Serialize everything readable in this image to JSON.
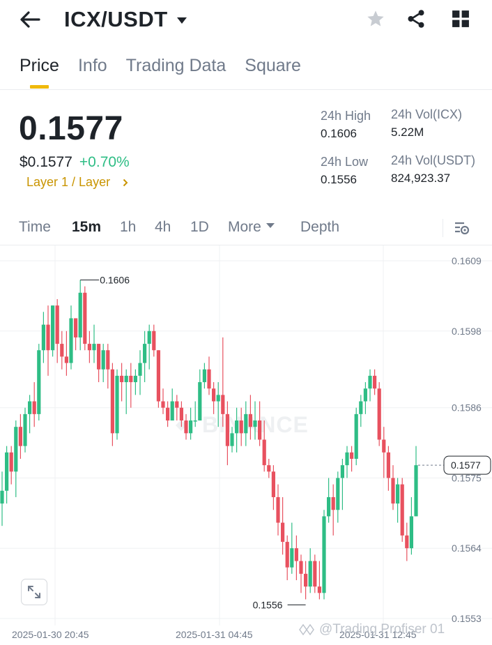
{
  "header": {
    "pair": "ICX/USDT",
    "back_icon": "arrow-left-icon",
    "star_icon": "star-icon",
    "share_icon": "share-icon",
    "grid_icon": "grid-icon"
  },
  "tabs": [
    {
      "label": "Price",
      "active": true
    },
    {
      "label": "Info",
      "active": false
    },
    {
      "label": "Trading Data",
      "active": false
    },
    {
      "label": "Square",
      "active": false
    }
  ],
  "price": {
    "last": "0.1577",
    "usd": "$0.1577",
    "change": "+0.70%",
    "tag": "Layer 1 / Layer"
  },
  "stats": {
    "high_label": "24h High",
    "high_value": "0.1606",
    "low_label": "24h Low",
    "low_value": "0.1556",
    "vol_base_label": "24h Vol(ICX)",
    "vol_base_value": "5.22M",
    "vol_quote_label": "24h Vol(USDT)",
    "vol_quote_value": "824,923.37"
  },
  "intervals": [
    {
      "label": "Time",
      "active": false
    },
    {
      "label": "15m",
      "active": true
    },
    {
      "label": "1h",
      "active": false
    },
    {
      "label": "4h",
      "active": false
    },
    {
      "label": "1D",
      "active": false
    },
    {
      "label": "More",
      "active": false
    },
    {
      "label": "Depth",
      "active": false
    }
  ],
  "colors": {
    "up": "#2ebd85",
    "down": "#e8515f",
    "accent": "#f0b90b",
    "tag": "#c99400",
    "text": "#1e2329",
    "muted": "#707a8a"
  },
  "chart_data": {
    "type": "candlestick",
    "interval": "15m",
    "y_ticks": [
      "0.1609",
      "0.1598",
      "0.1586",
      "0.1575",
      "0.1564",
      "0.1553"
    ],
    "x_labels": [
      "2025-01-30 20:45",
      "2025-01-31 04:45",
      "2025-01-31 12:45"
    ],
    "last_price_label": "0.1577",
    "high_marker": "0.1606",
    "low_marker": "0.1556",
    "watermark": "BINANCE",
    "footer_watermark": "@Trading Profiser 01",
    "candles": [
      [
        0.1571,
        0.1576,
        0.15675,
        0.1573
      ],
      [
        0.1573,
        0.158,
        0.1571,
        0.1579
      ],
      [
        0.1579,
        0.158,
        0.1574,
        0.1576
      ],
      [
        0.1576,
        0.1584,
        0.1572,
        0.1583
      ],
      [
        0.1583,
        0.1585,
        0.1578,
        0.158
      ],
      [
        0.158,
        0.1586,
        0.1579,
        0.1585
      ],
      [
        0.1585,
        0.1588,
        0.1582,
        0.1587
      ],
      [
        0.1587,
        0.159,
        0.1583,
        0.1585
      ],
      [
        0.1585,
        0.1596,
        0.1584,
        0.1595
      ],
      [
        0.1595,
        0.1601,
        0.1593,
        0.1599
      ],
      [
        0.1599,
        0.1602,
        0.1591,
        0.1595
      ],
      [
        0.1595,
        0.1602,
        0.1594,
        0.1602
      ],
      [
        0.1602,
        0.1603,
        0.1593,
        0.1596
      ],
      [
        0.1596,
        0.1598,
        0.1592,
        0.1594
      ],
      [
        0.1594,
        0.1598,
        0.1591,
        0.1593
      ],
      [
        0.1593,
        0.1602,
        0.1592,
        0.16
      ],
      [
        0.16,
        0.16,
        0.1595,
        0.1597
      ],
      [
        0.1597,
        0.1606,
        0.1595,
        0.1604
      ],
      [
        0.1604,
        0.1605,
        0.1595,
        0.1596
      ],
      [
        0.1596,
        0.1598,
        0.1593,
        0.1595
      ],
      [
        0.1595,
        0.1599,
        0.1593,
        0.1596
      ],
      [
        0.1596,
        0.1596,
        0.159,
        0.1592
      ],
      [
        0.1592,
        0.1596,
        0.159,
        0.1595
      ],
      [
        0.1595,
        0.1596,
        0.1589,
        0.1592
      ],
      [
        0.1592,
        0.1593,
        0.158,
        0.1582
      ],
      [
        0.1582,
        0.1592,
        0.1581,
        0.1591
      ],
      [
        0.1591,
        0.1593,
        0.1587,
        0.159
      ],
      [
        0.159,
        0.1592,
        0.1585,
        0.1591
      ],
      [
        0.1591,
        0.1593,
        0.1586,
        0.159
      ],
      [
        0.159,
        0.1592,
        0.1588,
        0.1591
      ],
      [
        0.1591,
        0.1595,
        0.1588,
        0.1593
      ],
      [
        0.1593,
        0.1598,
        0.159,
        0.1596
      ],
      [
        0.1596,
        0.1599,
        0.1592,
        0.1598
      ],
      [
        0.1598,
        0.1599,
        0.1594,
        0.1595
      ],
      [
        0.1595,
        0.1595,
        0.1586,
        0.1587
      ],
      [
        0.1587,
        0.1589,
        0.1585,
        0.1586
      ],
      [
        0.1586,
        0.1587,
        0.1583,
        0.1584
      ],
      [
        0.1584,
        0.1589,
        0.1584,
        0.1587
      ],
      [
        0.1587,
        0.1588,
        0.1584,
        0.1586
      ],
      [
        0.1586,
        0.1587,
        0.1583,
        0.1584
      ],
      [
        0.1584,
        0.1585,
        0.1581,
        0.1582
      ],
      [
        0.1582,
        0.1586,
        0.1581,
        0.1584
      ],
      [
        0.1584,
        0.1587,
        0.1583,
        0.1584
      ],
      [
        0.1584,
        0.1592,
        0.1584,
        0.159
      ],
      [
        0.159,
        0.1593,
        0.1589,
        0.1592
      ],
      [
        0.1592,
        0.1594,
        0.1588,
        0.1589
      ],
      [
        0.1589,
        0.159,
        0.1585,
        0.1587
      ],
      [
        0.1587,
        0.159,
        0.1583,
        0.1588
      ],
      [
        0.1588,
        0.1597,
        0.1583,
        0.1585
      ],
      [
        0.1585,
        0.1587,
        0.1577,
        0.158
      ],
      [
        0.158,
        0.1583,
        0.1579,
        0.1582
      ],
      [
        0.1582,
        0.1586,
        0.1579,
        0.1584
      ],
      [
        0.1584,
        0.1586,
        0.158,
        0.1582
      ],
      [
        0.1582,
        0.1587,
        0.158,
        0.1585
      ],
      [
        0.1585,
        0.1588,
        0.1581,
        0.1583
      ],
      [
        0.1583,
        0.1587,
        0.1581,
        0.1584
      ],
      [
        0.1584,
        0.1587,
        0.158,
        0.1581
      ],
      [
        0.1581,
        0.1584,
        0.1576,
        0.1577
      ],
      [
        0.1577,
        0.1578,
        0.1575,
        0.1576
      ],
      [
        0.1576,
        0.1577,
        0.157,
        0.1572
      ],
      [
        0.1572,
        0.1574,
        0.1566,
        0.1568
      ],
      [
        0.1568,
        0.1572,
        0.1563,
        0.1565
      ],
      [
        0.1565,
        0.1566,
        0.1559,
        0.1561
      ],
      [
        0.1561,
        0.1568,
        0.156,
        0.1564
      ],
      [
        0.1564,
        0.1566,
        0.1559,
        0.1562
      ],
      [
        0.1562,
        0.1563,
        0.1557,
        0.156
      ],
      [
        0.156,
        0.1562,
        0.1556,
        0.1558
      ],
      [
        0.1558,
        0.1564,
        0.1557,
        0.1562
      ],
      [
        0.1562,
        0.1563,
        0.1557,
        0.1558
      ],
      [
        0.1558,
        0.1562,
        0.1556,
        0.1557
      ],
      [
        0.1557,
        0.157,
        0.1556,
        0.1569
      ],
      [
        0.1569,
        0.1575,
        0.1568,
        0.1572
      ],
      [
        0.1572,
        0.1574,
        0.1566,
        0.157
      ],
      [
        0.157,
        0.1576,
        0.1568,
        0.1575
      ],
      [
        0.1575,
        0.1578,
        0.157,
        0.1577
      ],
      [
        0.1577,
        0.158,
        0.1575,
        0.1579
      ],
      [
        0.1579,
        0.158,
        0.1576,
        0.1578
      ],
      [
        0.1578,
        0.1586,
        0.1577,
        0.1585
      ],
      [
        0.1585,
        0.1588,
        0.1583,
        0.1587
      ],
      [
        0.1587,
        0.159,
        0.1585,
        0.1589
      ],
      [
        0.1589,
        0.1592,
        0.1587,
        0.1591
      ],
      [
        0.1591,
        0.1592,
        0.1588,
        0.1589
      ],
      [
        0.1589,
        0.159,
        0.158,
        0.1581
      ],
      [
        0.1581,
        0.1583,
        0.1575,
        0.1579
      ],
      [
        0.1579,
        0.158,
        0.1573,
        0.1575
      ],
      [
        0.1575,
        0.1577,
        0.157,
        0.1571
      ],
      [
        0.1571,
        0.1575,
        0.1568,
        0.1574
      ],
      [
        0.1574,
        0.1575,
        0.1565,
        0.1566
      ],
      [
        0.1566,
        0.1568,
        0.1562,
        0.1564
      ],
      [
        0.1564,
        0.1572,
        0.1563,
        0.1569
      ],
      [
        0.1569,
        0.158,
        0.1569,
        0.1577
      ]
    ]
  }
}
